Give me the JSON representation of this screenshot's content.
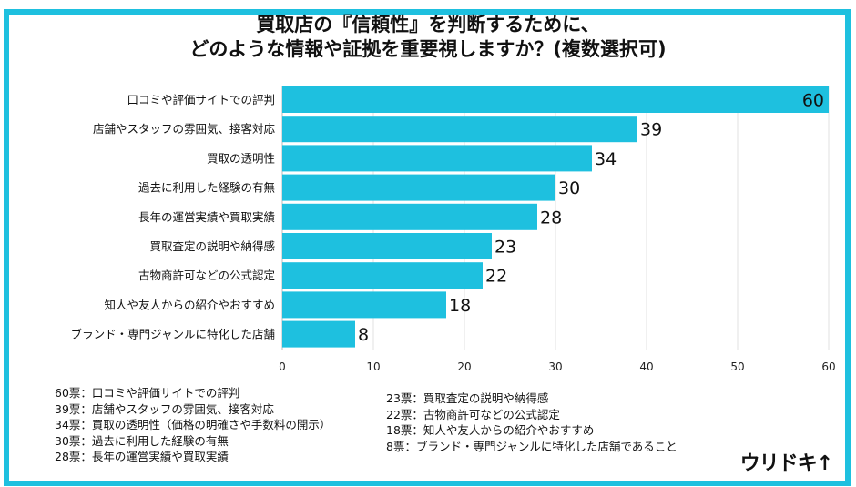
{
  "title_line1": "買取店の『信頼性』を判断するために、",
  "title_line2": "どのような情報や証拠を重要視しますか？(複数選択可)",
  "chart_data": {
    "type": "bar",
    "orientation": "horizontal",
    "categories": [
      "口コミや評価サイトでの評判",
      "店舗やスタッフの雰囲気、接客対応",
      "買取の透明性",
      "過去に利用した経験の有無",
      "長年の運営実績や買取実績",
      "買取査定の説明や納得感",
      "古物商許可などの公式認定",
      "知人や友人からの紹介やおすすめ",
      "ブランド・専門ジャンルに特化した店舗"
    ],
    "values": [
      60,
      39,
      34,
      30,
      28,
      23,
      22,
      18,
      8
    ],
    "xlim": [
      0,
      60
    ],
    "xticks": [
      0,
      10,
      20,
      30,
      40,
      50,
      60
    ],
    "grid": true,
    "bar_color": "#1ec0df"
  },
  "legend": {
    "left": [
      "60票：口コミや評価サイトでの評判",
      "39票：店舗やスタッフの雰囲気、接客対応",
      "34票：買取の透明性（価格の明確さや手数料の開示）",
      "30票：過去に利用した経験の有無",
      "28票：長年の運営実績や買取実績"
    ],
    "right": [
      "23票：買取査定の説明や納得感",
      "22票：古物商許可などの公式認定",
      "18票：知人や友人からの紹介やおすすめ",
      "8票：ブランド・専門ジャンルに特化した店舗であること"
    ]
  },
  "logo": "ウリドキ↑"
}
